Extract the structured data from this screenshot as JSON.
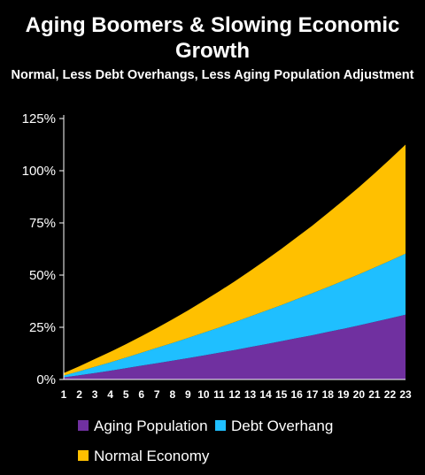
{
  "chart_data": {
    "type": "area",
    "stacked": true,
    "title": "Aging Boomers & Slowing Economic Growth",
    "subtitle": "Normal, Less Debt Overhangs, Less Aging Population Adjustment",
    "xlabel": "",
    "ylabel": "",
    "x": [
      1,
      2,
      3,
      4,
      5,
      6,
      7,
      8,
      9,
      10,
      11,
      12,
      13,
      14,
      15,
      16,
      17,
      18,
      19,
      20,
      21,
      22,
      23
    ],
    "ylim": [
      0,
      1.25
    ],
    "yticks": [
      "0%",
      "25%",
      "50%",
      "75%",
      "100%",
      "125%"
    ],
    "grid": false,
    "legend_position": "bottom",
    "series": [
      {
        "name": "Aging Population",
        "color": "#7030A0",
        "values": [
          0.01,
          0.02,
          0.031,
          0.042,
          0.054,
          0.066,
          0.078,
          0.09,
          0.102,
          0.115,
          0.128,
          0.141,
          0.155,
          0.169,
          0.183,
          0.198,
          0.212,
          0.228,
          0.243,
          0.259,
          0.276,
          0.293,
          0.31
        ]
      },
      {
        "name": "Debt Overhang",
        "color": "#1FBFFF",
        "values": [
          0.009,
          0.019,
          0.03,
          0.04,
          0.051,
          0.062,
          0.074,
          0.085,
          0.097,
          0.109,
          0.121,
          0.134,
          0.147,
          0.16,
          0.173,
          0.187,
          0.201,
          0.215,
          0.23,
          0.245,
          0.26,
          0.276,
          0.293
        ]
      },
      {
        "name": "Normal Economy",
        "color": "#FFC000",
        "values": [
          0.012,
          0.024,
          0.037,
          0.05,
          0.064,
          0.079,
          0.095,
          0.113,
          0.132,
          0.152,
          0.173,
          0.195,
          0.218,
          0.243,
          0.269,
          0.296,
          0.324,
          0.354,
          0.385,
          0.417,
          0.451,
          0.486,
          0.522
        ]
      }
    ]
  }
}
